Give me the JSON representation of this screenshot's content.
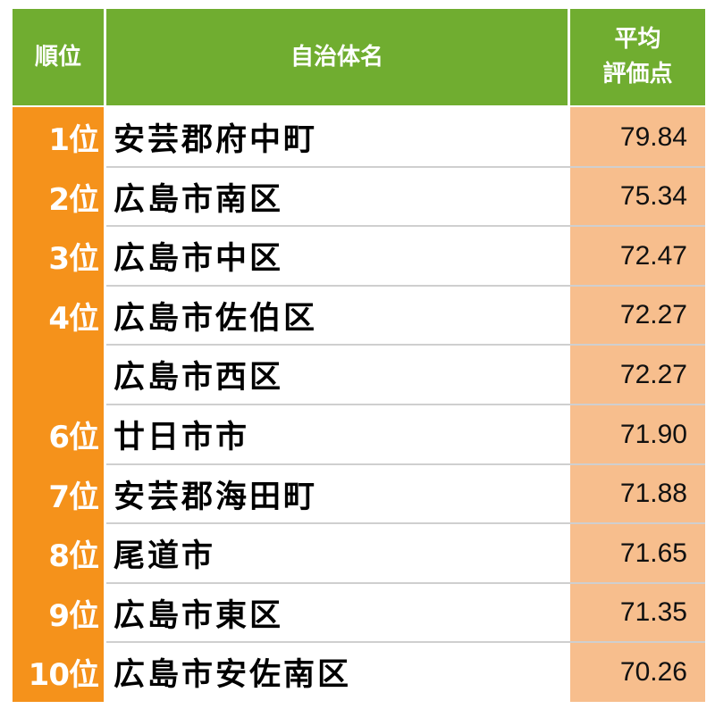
{
  "header": {
    "rank": "順位",
    "name": "自治体名",
    "score_line1": "平均",
    "score_line2": "評価点"
  },
  "rows": [
    {
      "rank": "1位",
      "name": "安芸郡府中町",
      "score": "79.84"
    },
    {
      "rank": "2位",
      "name": "広島市南区",
      "score": "75.34"
    },
    {
      "rank": "3位",
      "name": "広島市中区",
      "score": "72.47"
    },
    {
      "rank": "4位",
      "name": "広島市佐伯区",
      "score": "72.27"
    },
    {
      "rank": "",
      "name": "広島市西区",
      "score": "72.27"
    },
    {
      "rank": "6位",
      "name": "廿日市市",
      "score": "71.90"
    },
    {
      "rank": "7位",
      "name": "安芸郡海田町",
      "score": "71.88"
    },
    {
      "rank": "8位",
      "name": "尾道市",
      "score": "71.65"
    },
    {
      "rank": "9位",
      "name": "広島市東区",
      "score": "71.35"
    },
    {
      "rank": "10位",
      "name": "広島市安佐南区",
      "score": "70.26"
    }
  ],
  "colors": {
    "header_green": "#70AD30",
    "rank_orange": "#F5921B",
    "score_peach": "#F7BE8D"
  }
}
